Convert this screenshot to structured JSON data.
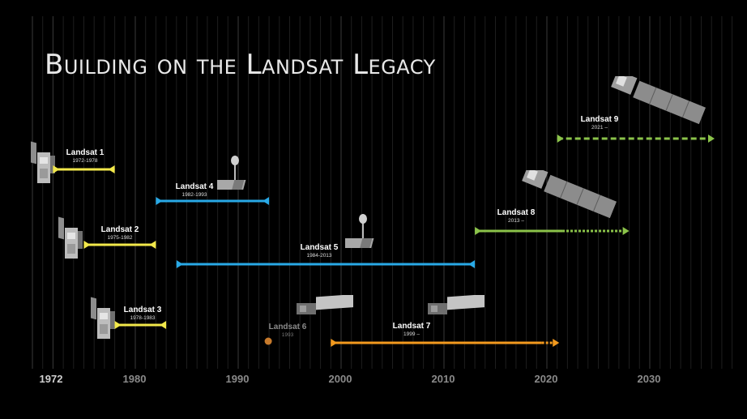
{
  "title": "Building on the Landsat Legacy",
  "axis": {
    "years": [
      "1972",
      "1980",
      "1990",
      "2000",
      "2010",
      "2020",
      "2030"
    ]
  },
  "colors": {
    "yellow": "#f2e84a",
    "blue": "#29a9e6",
    "green": "#8bc34a",
    "orange": "#f39a1e",
    "failed": "#c77a2c"
  },
  "missions": [
    {
      "name": "Landsat 1",
      "years": "1972-1978",
      "color": "yellow",
      "start": 1972,
      "end": 1978
    },
    {
      "name": "Landsat 2",
      "years": "1975-1982",
      "color": "yellow",
      "start": 1975,
      "end": 1982
    },
    {
      "name": "Landsat 3",
      "years": "1978-1983",
      "color": "yellow",
      "start": 1978,
      "end": 1983
    },
    {
      "name": "Landsat 4",
      "years": "1982-1993",
      "color": "blue",
      "start": 1982,
      "end": 1993
    },
    {
      "name": "Landsat 5",
      "years": "1984-2013",
      "color": "blue",
      "start": 1984,
      "end": 2013
    },
    {
      "name": "Landsat 6",
      "years": "1993",
      "color": "failed",
      "start": 1993,
      "end": 1993
    },
    {
      "name": "Landsat 7",
      "years": "1999 –",
      "color": "orange",
      "start": 1999,
      "end": "ongoing"
    },
    {
      "name": "Landsat 8",
      "years": "2013 –",
      "color": "green",
      "start": 2013,
      "end": "ongoing"
    },
    {
      "name": "Landsat 9",
      "years": "2021 –",
      "color": "green",
      "start": 2021,
      "end": "ongoing"
    }
  ]
}
